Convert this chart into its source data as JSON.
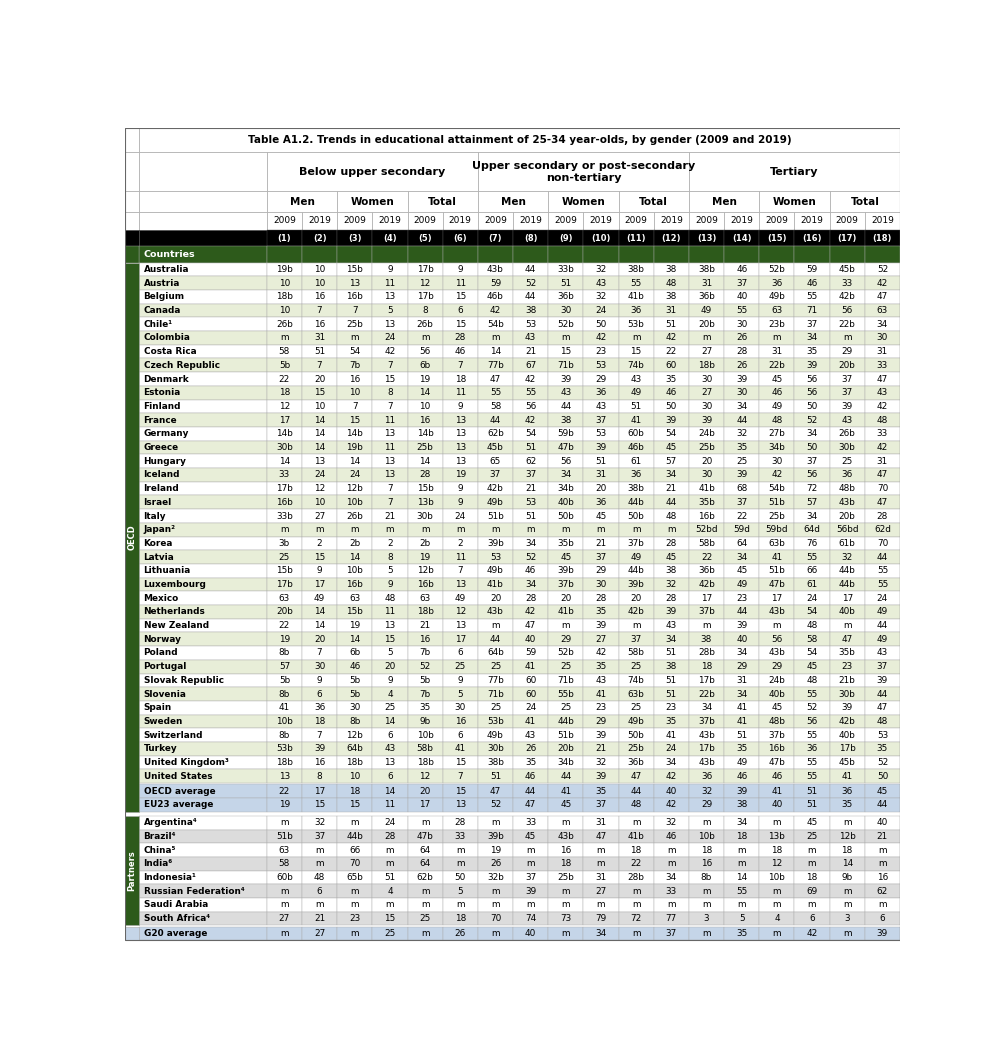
{
  "title": "Table A1.2. Trends in educational attainment of 25-34 year-olds, by gender (2009 and 2019)",
  "rows": [
    [
      "Australia",
      "19b",
      "10",
      "15b",
      "9",
      "17b",
      "9",
      "43b",
      "44",
      "33b",
      "32",
      "38b",
      "38",
      "38b",
      "46",
      "52b",
      "59",
      "45b",
      "52"
    ],
    [
      "Austria",
      "10",
      "10",
      "13",
      "11",
      "12",
      "11",
      "59",
      "52",
      "51",
      "43",
      "55",
      "48",
      "31",
      "37",
      "36",
      "46",
      "33",
      "42"
    ],
    [
      "Belgium",
      "18b",
      "16",
      "16b",
      "13",
      "17b",
      "15",
      "46b",
      "44",
      "36b",
      "32",
      "41b",
      "38",
      "36b",
      "40",
      "49b",
      "55",
      "42b",
      "47"
    ],
    [
      "Canada",
      "10",
      "7",
      "7",
      "5",
      "8",
      "6",
      "42",
      "38",
      "30",
      "24",
      "36",
      "31",
      "49",
      "55",
      "63",
      "71",
      "56",
      "63"
    ],
    [
      "Chile¹",
      "26b",
      "16",
      "25b",
      "13",
      "26b",
      "15",
      "54b",
      "53",
      "52b",
      "50",
      "53b",
      "51",
      "20b",
      "30",
      "23b",
      "37",
      "22b",
      "34"
    ],
    [
      "Colombia",
      "m",
      "31",
      "m",
      "24",
      "m",
      "28",
      "m",
      "43",
      "m",
      "42",
      "m",
      "42",
      "m",
      "26",
      "m",
      "34",
      "m",
      "30"
    ],
    [
      "Costa Rica",
      "58",
      "51",
      "54",
      "42",
      "56",
      "46",
      "14",
      "21",
      "15",
      "23",
      "15",
      "22",
      "27",
      "28",
      "31",
      "35",
      "29",
      "31"
    ],
    [
      "Czech Republic",
      "5b",
      "7",
      "7b",
      "7",
      "6b",
      "7",
      "77b",
      "67",
      "71b",
      "53",
      "74b",
      "60",
      "18b",
      "26",
      "22b",
      "39",
      "20b",
      "33"
    ],
    [
      "Denmark",
      "22",
      "20",
      "16",
      "15",
      "19",
      "18",
      "47",
      "42",
      "39",
      "29",
      "43",
      "35",
      "30",
      "39",
      "45",
      "56",
      "37",
      "47"
    ],
    [
      "Estonia",
      "18",
      "15",
      "10",
      "8",
      "14",
      "11",
      "55",
      "55",
      "43",
      "36",
      "49",
      "46",
      "27",
      "30",
      "46",
      "56",
      "37",
      "43"
    ],
    [
      "Finland",
      "12",
      "10",
      "7",
      "7",
      "10",
      "9",
      "58",
      "56",
      "44",
      "43",
      "51",
      "50",
      "30",
      "34",
      "49",
      "50",
      "39",
      "42"
    ],
    [
      "France",
      "17",
      "14",
      "15",
      "11",
      "16",
      "13",
      "44",
      "42",
      "38",
      "37",
      "41",
      "39",
      "39",
      "44",
      "48",
      "52",
      "43",
      "48"
    ],
    [
      "Germany",
      "14b",
      "14",
      "14b",
      "13",
      "14b",
      "13",
      "62b",
      "54",
      "59b",
      "53",
      "60b",
      "54",
      "24b",
      "32",
      "27b",
      "34",
      "26b",
      "33"
    ],
    [
      "Greece",
      "30b",
      "14",
      "19b",
      "11",
      "25b",
      "13",
      "45b",
      "51",
      "47b",
      "39",
      "46b",
      "45",
      "25b",
      "35",
      "34b",
      "50",
      "30b",
      "42"
    ],
    [
      "Hungary",
      "14",
      "13",
      "14",
      "13",
      "14",
      "13",
      "65",
      "62",
      "56",
      "51",
      "61",
      "57",
      "20",
      "25",
      "30",
      "37",
      "25",
      "31"
    ],
    [
      "Iceland",
      "33",
      "24",
      "24",
      "13",
      "28",
      "19",
      "37",
      "37",
      "34",
      "31",
      "36",
      "34",
      "30",
      "39",
      "42",
      "56",
      "36",
      "47"
    ],
    [
      "Ireland",
      "17b",
      "12",
      "12b",
      "7",
      "15b",
      "9",
      "42b",
      "21",
      "34b",
      "20",
      "38b",
      "21",
      "41b",
      "68",
      "54b",
      "72",
      "48b",
      "70"
    ],
    [
      "Israel",
      "16b",
      "10",
      "10b",
      "7",
      "13b",
      "9",
      "49b",
      "53",
      "40b",
      "36",
      "44b",
      "44",
      "35b",
      "37",
      "51b",
      "57",
      "43b",
      "47"
    ],
    [
      "Italy",
      "33b",
      "27",
      "26b",
      "21",
      "30b",
      "24",
      "51b",
      "51",
      "50b",
      "45",
      "50b",
      "48",
      "16b",
      "22",
      "25b",
      "34",
      "20b",
      "28"
    ],
    [
      "Japan²",
      "m",
      "m",
      "m",
      "m",
      "m",
      "m",
      "m",
      "m",
      "m",
      "m",
      "m",
      "m",
      "52bd",
      "59d",
      "59bd",
      "64d",
      "56bd",
      "62d"
    ],
    [
      "Korea",
      "3b",
      "2",
      "2b",
      "2",
      "2b",
      "2",
      "39b",
      "34",
      "35b",
      "21",
      "37b",
      "28",
      "58b",
      "64",
      "63b",
      "76",
      "61b",
      "70"
    ],
    [
      "Latvia",
      "25",
      "15",
      "14",
      "8",
      "19",
      "11",
      "53",
      "52",
      "45",
      "37",
      "49",
      "45",
      "22",
      "34",
      "41",
      "55",
      "32",
      "44"
    ],
    [
      "Lithuania",
      "15b",
      "9",
      "10b",
      "5",
      "12b",
      "7",
      "49b",
      "46",
      "39b",
      "29",
      "44b",
      "38",
      "36b",
      "45",
      "51b",
      "66",
      "44b",
      "55"
    ],
    [
      "Luxembourg",
      "17b",
      "17",
      "16b",
      "9",
      "16b",
      "13",
      "41b",
      "34",
      "37b",
      "30",
      "39b",
      "32",
      "42b",
      "49",
      "47b",
      "61",
      "44b",
      "55"
    ],
    [
      "Mexico",
      "63",
      "49",
      "63",
      "48",
      "63",
      "49",
      "20",
      "28",
      "20",
      "28",
      "20",
      "28",
      "17",
      "23",
      "17",
      "24",
      "17",
      "24"
    ],
    [
      "Netherlands",
      "20b",
      "14",
      "15b",
      "11",
      "18b",
      "12",
      "43b",
      "42",
      "41b",
      "35",
      "42b",
      "39",
      "37b",
      "44",
      "43b",
      "54",
      "40b",
      "49"
    ],
    [
      "New Zealand",
      "22",
      "14",
      "19",
      "13",
      "21",
      "13",
      "m",
      "47",
      "m",
      "39",
      "m",
      "43",
      "m",
      "39",
      "m",
      "48",
      "m",
      "44"
    ],
    [
      "Norway",
      "19",
      "20",
      "14",
      "15",
      "16",
      "17",
      "44",
      "40",
      "29",
      "27",
      "37",
      "34",
      "38",
      "40",
      "56",
      "58",
      "47",
      "49"
    ],
    [
      "Poland",
      "8b",
      "7",
      "6b",
      "5",
      "7b",
      "6",
      "64b",
      "59",
      "52b",
      "42",
      "58b",
      "51",
      "28b",
      "34",
      "43b",
      "54",
      "35b",
      "43"
    ],
    [
      "Portugal",
      "57",
      "30",
      "46",
      "20",
      "52",
      "25",
      "25",
      "41",
      "25",
      "35",
      "25",
      "38",
      "18",
      "29",
      "29",
      "45",
      "23",
      "37"
    ],
    [
      "Slovak Republic",
      "5b",
      "9",
      "5b",
      "9",
      "5b",
      "9",
      "77b",
      "60",
      "71b",
      "43",
      "74b",
      "51",
      "17b",
      "31",
      "24b",
      "48",
      "21b",
      "39"
    ],
    [
      "Slovenia",
      "8b",
      "6",
      "5b",
      "4",
      "7b",
      "5",
      "71b",
      "60",
      "55b",
      "41",
      "63b",
      "51",
      "22b",
      "34",
      "40b",
      "55",
      "30b",
      "44"
    ],
    [
      "Spain",
      "41",
      "36",
      "30",
      "25",
      "35",
      "30",
      "25",
      "24",
      "25",
      "23",
      "25",
      "23",
      "34",
      "41",
      "45",
      "52",
      "39",
      "47"
    ],
    [
      "Sweden",
      "10b",
      "18",
      "8b",
      "14",
      "9b",
      "16",
      "53b",
      "41",
      "44b",
      "29",
      "49b",
      "35",
      "37b",
      "41",
      "48b",
      "56",
      "42b",
      "48"
    ],
    [
      "Switzerland",
      "8b",
      "7",
      "12b",
      "6",
      "10b",
      "6",
      "49b",
      "43",
      "51b",
      "39",
      "50b",
      "41",
      "43b",
      "51",
      "37b",
      "55",
      "40b",
      "53"
    ],
    [
      "Turkey",
      "53b",
      "39",
      "64b",
      "43",
      "58b",
      "41",
      "30b",
      "26",
      "20b",
      "21",
      "25b",
      "24",
      "17b",
      "35",
      "16b",
      "36",
      "17b",
      "35"
    ],
    [
      "United Kingdom³",
      "18b",
      "16",
      "18b",
      "13",
      "18b",
      "15",
      "38b",
      "35",
      "34b",
      "32",
      "36b",
      "34",
      "43b",
      "49",
      "47b",
      "55",
      "45b",
      "52"
    ],
    [
      "United States",
      "13",
      "8",
      "10",
      "6",
      "12",
      "7",
      "51",
      "46",
      "44",
      "39",
      "47",
      "42",
      "36",
      "46",
      "46",
      "55",
      "41",
      "50"
    ]
  ],
  "average_rows": [
    [
      "OECD average",
      "22",
      "17",
      "18",
      "14",
      "20",
      "15",
      "47",
      "44",
      "41",
      "35",
      "44",
      "40",
      "32",
      "39",
      "41",
      "51",
      "36",
      "45"
    ],
    [
      "EU23 average",
      "19",
      "15",
      "15",
      "11",
      "17",
      "13",
      "52",
      "47",
      "45",
      "37",
      "48",
      "42",
      "29",
      "38",
      "40",
      "51",
      "35",
      "44"
    ]
  ],
  "partner_rows": [
    [
      "Argentina⁴",
      "m",
      "32",
      "m",
      "24",
      "m",
      "28",
      "m",
      "33",
      "m",
      "31",
      "m",
      "32",
      "m",
      "34",
      "m",
      "45",
      "m",
      "40"
    ],
    [
      "Brazil⁴",
      "51b",
      "37",
      "44b",
      "28",
      "47b",
      "33",
      "39b",
      "45",
      "43b",
      "47",
      "41b",
      "46",
      "10b",
      "18",
      "13b",
      "25",
      "12b",
      "21"
    ],
    [
      "China⁵",
      "63",
      "m",
      "66",
      "m",
      "64",
      "m",
      "19",
      "m",
      "16",
      "m",
      "18",
      "m",
      "18",
      "m",
      "18",
      "m",
      "18",
      "m"
    ],
    [
      "India⁶",
      "58",
      "m",
      "70",
      "m",
      "64",
      "m",
      "26",
      "m",
      "18",
      "m",
      "22",
      "m",
      "16",
      "m",
      "12",
      "m",
      "14",
      "m"
    ],
    [
      "Indonesia¹",
      "60b",
      "48",
      "65b",
      "51",
      "62b",
      "50",
      "32b",
      "37",
      "25b",
      "31",
      "28b",
      "34",
      "8b",
      "14",
      "10b",
      "18",
      "9b",
      "16"
    ],
    [
      "Russian Federation⁴",
      "m",
      "6",
      "m",
      "4",
      "m",
      "5",
      "m",
      "39",
      "m",
      "27",
      "m",
      "33",
      "m",
      "55",
      "m",
      "69",
      "m",
      "62"
    ],
    [
      "Saudi Arabia",
      "m",
      "m",
      "m",
      "m",
      "m",
      "m",
      "m",
      "m",
      "m",
      "m",
      "m",
      "m",
      "m",
      "m",
      "m",
      "m",
      "m",
      "m"
    ],
    [
      "South Africa⁴",
      "27",
      "21",
      "23",
      "15",
      "25",
      "18",
      "70",
      "74",
      "73",
      "79",
      "72",
      "77",
      "3",
      "5",
      "4",
      "6",
      "3",
      "6"
    ]
  ],
  "g20_row": [
    "G20 average",
    "m",
    "27",
    "m",
    "25",
    "m",
    "26",
    "m",
    "40",
    "m",
    "34",
    "m",
    "37",
    "m",
    "35",
    "m",
    "42",
    "m",
    "39"
  ],
  "color_row_alt1": "#FFFFFF",
  "color_row_alt2": "#E8EED8",
  "color_avg_bg": "#C5D5E8",
  "color_partner_alt1": "#FFFFFF",
  "color_partner_alt2": "#DCDCDC",
  "color_green": "#2D5A1B",
  "color_black_row": "#000000",
  "color_border": "#AAAAAA",
  "color_bold_border": "#888888"
}
